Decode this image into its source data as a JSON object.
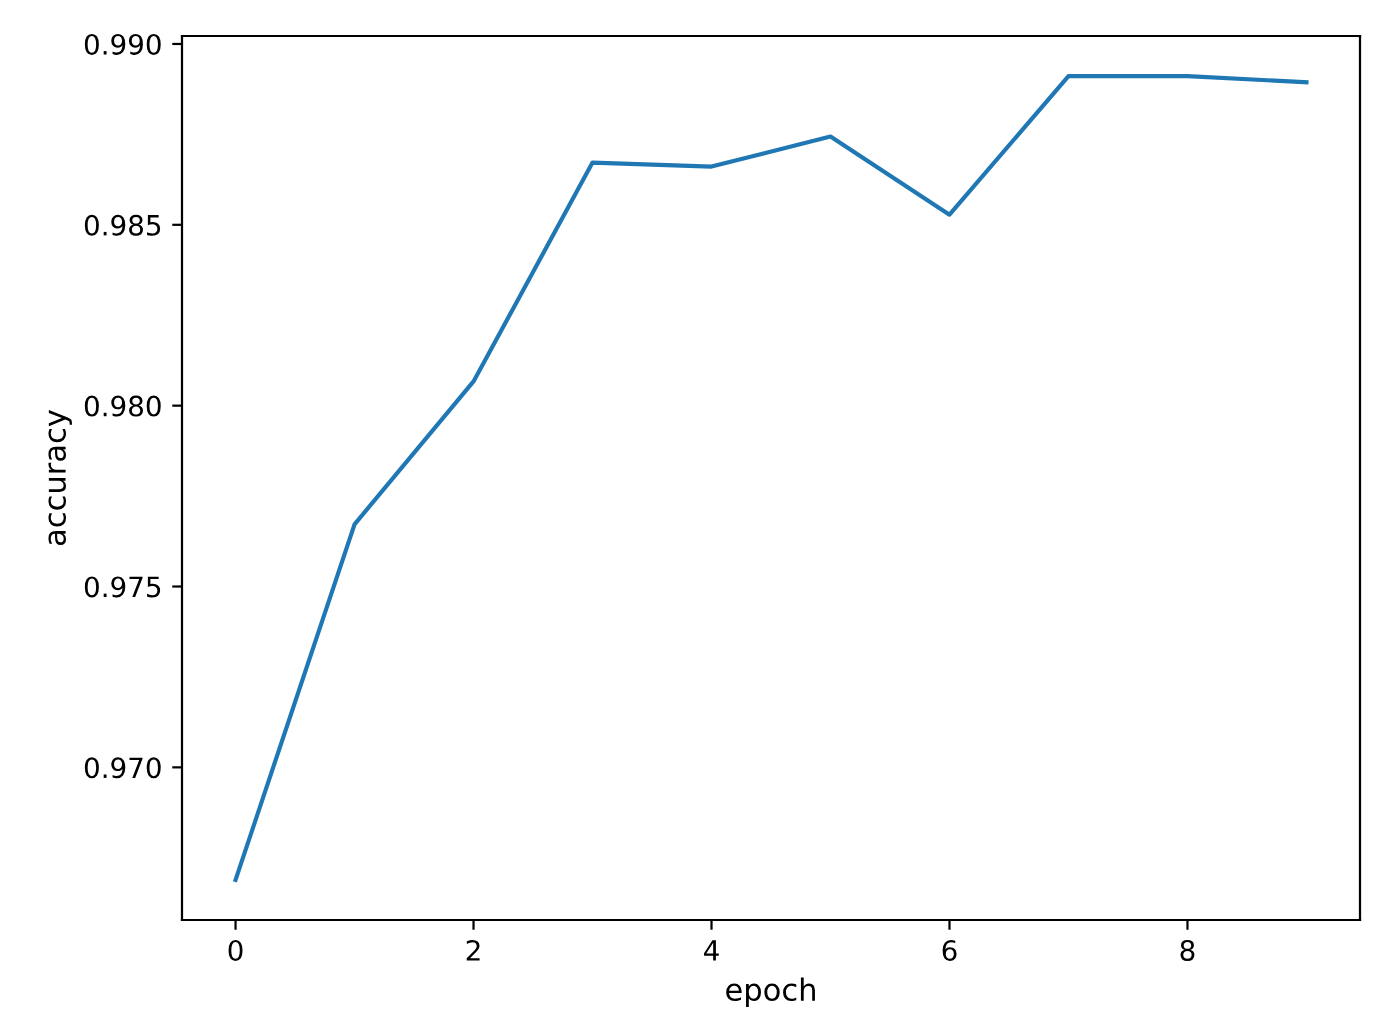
{
  "chart_data": {
    "type": "line",
    "xlabel": "epoch",
    "ylabel": "accuracy",
    "x": [
      0,
      1,
      2,
      3,
      4,
      5,
      6,
      7,
      8,
      9
    ],
    "series": [
      {
        "color": "#1f77b4",
        "values": [
          0.96689,
          0.97672,
          0.98067,
          0.98672,
          0.98661,
          0.98744,
          0.98528,
          0.98911,
          0.98911,
          0.98894
        ]
      }
    ],
    "xlim": [
      -0.45,
      9.45
    ],
    "ylim": [
      0.96578,
      0.99022
    ],
    "xticks": [
      0,
      2,
      4,
      6,
      8
    ],
    "yticks": [
      {
        "value": 0.97,
        "label": "0.970"
      },
      {
        "value": 0.975,
        "label": "0.975"
      },
      {
        "value": 0.98,
        "label": "0.980"
      },
      {
        "value": 0.985,
        "label": "0.985"
      },
      {
        "value": 0.99,
        "label": "0.990"
      }
    ],
    "grid": false,
    "legend": false
  }
}
